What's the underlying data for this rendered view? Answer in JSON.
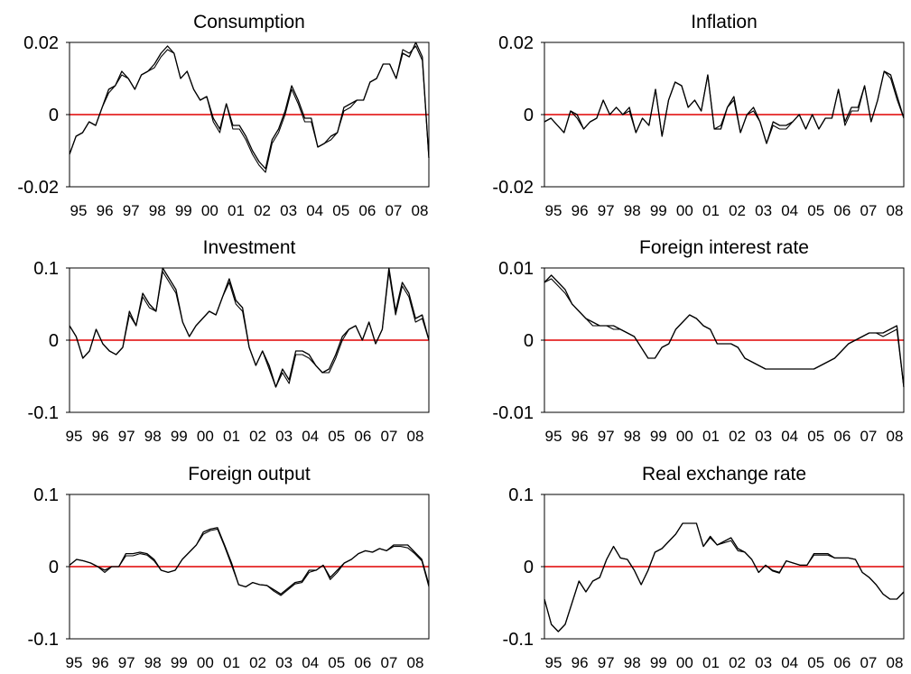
{
  "chart_data": [
    {
      "type": "line",
      "title": "Consumption",
      "ylim": [
        -0.02,
        0.02
      ],
      "yticks": [
        "0.02",
        "0",
        "-0.02"
      ],
      "xticks": [
        "95",
        "96",
        "97",
        "98",
        "99",
        "00",
        "01",
        "02",
        "03",
        "04",
        "05",
        "06",
        "07",
        "08"
      ],
      "reference_line": 0,
      "colors": {
        "series": "#000000",
        "zero_line": "#e00000"
      },
      "series": [
        {
          "values": [
            -0.011,
            -0.006,
            -0.005,
            -0.002,
            -0.003,
            0.002,
            0.007,
            0.008,
            0.012,
            0.01,
            0.007,
            0.011,
            0.012,
            0.014,
            0.017,
            0.019,
            0.017,
            0.01,
            0.012,
            0.007,
            0.004,
            0.005,
            -0.001,
            -0.004,
            0.003,
            -0.003,
            -0.003,
            -0.006,
            -0.01,
            -0.013,
            -0.015,
            -0.007,
            -0.004,
            0.001,
            0.008,
            0.004,
            -0.001,
            -0.001,
            -0.009,
            -0.008,
            -0.006,
            -0.005,
            0.002,
            0.003,
            0.004,
            0.004,
            0.009,
            0.01,
            0.014,
            0.014,
            0.01,
            0.017,
            0.016,
            0.02,
            0.016,
            -0.012
          ]
        },
        {
          "values": [
            -0.011,
            -0.006,
            -0.005,
            -0.002,
            -0.003,
            0.002,
            0.006,
            0.008,
            0.011,
            0.01,
            0.007,
            0.011,
            0.012,
            0.013,
            0.016,
            0.018,
            0.017,
            0.01,
            0.012,
            0.007,
            0.004,
            0.005,
            -0.002,
            -0.005,
            0.003,
            -0.004,
            -0.004,
            -0.007,
            -0.011,
            -0.014,
            -0.016,
            -0.008,
            -0.005,
            0.0,
            0.007,
            0.003,
            -0.002,
            -0.002,
            -0.009,
            -0.008,
            -0.007,
            -0.005,
            0.001,
            0.002,
            0.004,
            0.004,
            0.009,
            0.01,
            0.014,
            0.014,
            0.01,
            0.018,
            0.017,
            0.019,
            0.015,
            -0.012
          ]
        }
      ]
    },
    {
      "type": "line",
      "title": "Inflation",
      "ylim": [
        -0.02,
        0.02
      ],
      "yticks": [
        "0.02",
        "0",
        "-0.02"
      ],
      "xticks": [
        "95",
        "96",
        "97",
        "98",
        "99",
        "00",
        "01",
        "02",
        "03",
        "04",
        "05",
        "06",
        "07",
        "08"
      ],
      "reference_line": 0,
      "colors": {
        "series": "#000000",
        "zero_line": "#e00000"
      },
      "series": [
        {
          "values": [
            -0.002,
            -0.001,
            -0.003,
            -0.005,
            0.001,
            0.0,
            -0.004,
            -0.002,
            -0.001,
            0.004,
            0.0,
            0.002,
            0.0,
            0.002,
            -0.005,
            -0.001,
            -0.003,
            0.007,
            -0.006,
            0.004,
            0.009,
            0.008,
            0.002,
            0.004,
            0.001,
            0.011,
            -0.004,
            -0.004,
            0.002,
            0.005,
            -0.005,
            0.0,
            0.002,
            -0.002,
            -0.008,
            -0.002,
            -0.003,
            -0.003,
            -0.002,
            0.0,
            -0.004,
            0.0,
            -0.004,
            -0.001,
            -0.001,
            0.007,
            -0.002,
            0.002,
            0.002,
            0.008,
            -0.002,
            0.004,
            0.012,
            0.011,
            0.005,
            -0.001
          ]
        },
        {
          "values": [
            -0.002,
            -0.001,
            -0.003,
            -0.005,
            0.001,
            -0.001,
            -0.004,
            -0.002,
            -0.001,
            0.004,
            0.0,
            0.002,
            0.0,
            0.001,
            -0.005,
            -0.001,
            -0.003,
            0.007,
            -0.006,
            0.004,
            0.009,
            0.008,
            0.002,
            0.004,
            0.001,
            0.011,
            -0.004,
            -0.003,
            0.002,
            0.004,
            -0.005,
            0.0,
            0.001,
            -0.002,
            -0.008,
            -0.003,
            -0.004,
            -0.004,
            -0.002,
            0.0,
            -0.004,
            0.0,
            -0.004,
            -0.001,
            -0.001,
            0.007,
            -0.003,
            0.001,
            0.001,
            0.008,
            -0.002,
            0.004,
            0.012,
            0.01,
            0.004,
            -0.001
          ]
        }
      ]
    },
    {
      "type": "line",
      "title": "Investment",
      "ylim": [
        -0.1,
        0.1
      ],
      "yticks": [
        "0.1",
        "0",
        "-0.1"
      ],
      "xticks": [
        "95",
        "96",
        "97",
        "98",
        "99",
        "00",
        "01",
        "02",
        "03",
        "04",
        "05",
        "06",
        "07",
        "08"
      ],
      "reference_line": 0,
      "colors": {
        "series": "#000000",
        "zero_line": "#e00000"
      },
      "series": [
        {
          "values": [
            0.02,
            0.005,
            -0.025,
            -0.015,
            0.015,
            -0.005,
            -0.015,
            -0.02,
            -0.01,
            0.04,
            0.02,
            0.065,
            0.05,
            0.04,
            0.1,
            0.085,
            0.07,
            0.025,
            0.005,
            0.02,
            0.03,
            0.04,
            0.035,
            0.06,
            0.085,
            0.055,
            0.045,
            -0.01,
            -0.035,
            -0.015,
            -0.035,
            -0.065,
            -0.04,
            -0.055,
            -0.015,
            -0.015,
            -0.02,
            -0.035,
            -0.045,
            -0.04,
            -0.02,
            0.005,
            0.015,
            0.02,
            0.0,
            0.025,
            -0.005,
            0.015,
            0.1,
            0.04,
            0.08,
            0.065,
            0.03,
            0.035,
            0.0
          ]
        },
        {
          "values": [
            0.02,
            0.005,
            -0.025,
            -0.015,
            0.015,
            -0.005,
            -0.015,
            -0.02,
            -0.01,
            0.035,
            0.02,
            0.06,
            0.045,
            0.04,
            0.095,
            0.08,
            0.065,
            0.025,
            0.005,
            0.02,
            0.03,
            0.04,
            0.035,
            0.06,
            0.08,
            0.05,
            0.04,
            -0.01,
            -0.035,
            -0.015,
            -0.04,
            -0.065,
            -0.045,
            -0.06,
            -0.02,
            -0.02,
            -0.025,
            -0.035,
            -0.045,
            -0.045,
            -0.025,
            0.0,
            0.015,
            0.02,
            0.0,
            0.025,
            -0.005,
            0.015,
            0.095,
            0.035,
            0.075,
            0.06,
            0.025,
            0.03,
            0.0
          ]
        }
      ]
    },
    {
      "type": "line",
      "title": "Foreign interest rate",
      "ylim": [
        -0.01,
        0.01
      ],
      "yticks": [
        "0.01",
        "0",
        "-0.01"
      ],
      "xticks": [
        "95",
        "96",
        "97",
        "98",
        "99",
        "00",
        "01",
        "02",
        "03",
        "04",
        "05",
        "06",
        "07",
        "08"
      ],
      "reference_line": 0,
      "colors": {
        "series": "#000000",
        "zero_line": "#e00000"
      },
      "series": [
        {
          "values": [
            0.008,
            0.009,
            0.008,
            0.007,
            0.005,
            0.004,
            0.003,
            0.0025,
            0.002,
            0.002,
            0.002,
            0.0015,
            0.001,
            0.0005,
            -0.001,
            -0.0025,
            -0.0025,
            -0.001,
            -0.0005,
            0.0015,
            0.0025,
            0.0035,
            0.003,
            0.002,
            0.0015,
            -0.0005,
            -0.0005,
            -0.0005,
            -0.001,
            -0.0025,
            -0.003,
            -0.0035,
            -0.004,
            -0.004,
            -0.004,
            -0.004,
            -0.004,
            -0.004,
            -0.004,
            -0.004,
            -0.0035,
            -0.003,
            -0.0025,
            -0.0015,
            -0.0005,
            0.0,
            0.0005,
            0.001,
            0.001,
            0.001,
            0.0015,
            0.002,
            -0.0065
          ]
        },
        {
          "values": [
            0.008,
            0.0085,
            0.0075,
            0.0065,
            0.005,
            0.004,
            0.003,
            0.002,
            0.002,
            0.002,
            0.0015,
            0.0015,
            0.001,
            0.0005,
            -0.001,
            -0.0025,
            -0.0025,
            -0.001,
            -0.0005,
            0.0015,
            0.0025,
            0.0035,
            0.003,
            0.002,
            0.0015,
            -0.0005,
            -0.0005,
            -0.0005,
            -0.001,
            -0.0025,
            -0.003,
            -0.0035,
            -0.004,
            -0.004,
            -0.004,
            -0.004,
            -0.004,
            -0.004,
            -0.004,
            -0.004,
            -0.0035,
            -0.003,
            -0.0025,
            -0.0015,
            -0.0005,
            0.0,
            0.0005,
            0.001,
            0.001,
            0.0005,
            0.001,
            0.0015,
            -0.0065
          ]
        }
      ]
    },
    {
      "type": "line",
      "title": "Foreign output",
      "ylim": [
        -0.1,
        0.1
      ],
      "yticks": [
        "0.1",
        "0",
        "-0.1"
      ],
      "xticks": [
        "95",
        "96",
        "97",
        "98",
        "99",
        "00",
        "01",
        "02",
        "03",
        "04",
        "05",
        "06",
        "07",
        "08"
      ],
      "reference_line": 0,
      "colors": {
        "series": "#000000",
        "zero_line": "#e00000"
      },
      "series": [
        {
          "values": [
            0.002,
            0.01,
            0.008,
            0.005,
            0.0,
            -0.005,
            0.0,
            0.0,
            0.018,
            0.018,
            0.02,
            0.018,
            0.01,
            -0.005,
            -0.008,
            -0.005,
            0.01,
            0.02,
            0.03,
            0.048,
            0.052,
            0.054,
            0.03,
            0.005,
            -0.025,
            -0.028,
            -0.022,
            -0.025,
            -0.026,
            -0.032,
            -0.038,
            -0.03,
            -0.022,
            -0.02,
            -0.005,
            -0.005,
            0.002,
            -0.015,
            -0.005,
            0.005,
            0.01,
            0.018,
            0.022,
            0.02,
            0.025,
            0.022,
            0.03,
            0.03,
            0.03,
            0.02,
            0.01,
            -0.025
          ]
        },
        {
          "values": [
            0.002,
            0.01,
            0.008,
            0.005,
            0.0,
            -0.008,
            0.0,
            0.0,
            0.015,
            0.015,
            0.018,
            0.016,
            0.008,
            -0.005,
            -0.008,
            -0.005,
            0.01,
            0.02,
            0.03,
            0.045,
            0.05,
            0.052,
            0.028,
            0.002,
            -0.025,
            -0.028,
            -0.022,
            -0.025,
            -0.026,
            -0.034,
            -0.04,
            -0.032,
            -0.024,
            -0.022,
            -0.008,
            -0.005,
            0.002,
            -0.018,
            -0.008,
            0.005,
            0.01,
            0.018,
            0.022,
            0.02,
            0.025,
            0.022,
            0.028,
            0.028,
            0.026,
            0.018,
            0.008,
            -0.028
          ]
        }
      ]
    },
    {
      "type": "line",
      "title": "Real exchange rate",
      "ylim": [
        -0.1,
        0.1
      ],
      "yticks": [
        "0.1",
        "0",
        "-0.1"
      ],
      "xticks": [
        "95",
        "96",
        "97",
        "98",
        "99",
        "00",
        "01",
        "02",
        "03",
        "04",
        "05",
        "06",
        "07",
        "08"
      ],
      "reference_line": 0,
      "colors": {
        "series": "#000000",
        "zero_line": "#e00000"
      },
      "series": [
        {
          "values": [
            -0.045,
            -0.08,
            -0.09,
            -0.08,
            -0.05,
            -0.02,
            -0.035,
            -0.02,
            -0.015,
            0.01,
            0.028,
            0.012,
            0.01,
            -0.005,
            -0.025,
            -0.005,
            0.02,
            0.025,
            0.035,
            0.045,
            0.06,
            0.06,
            0.06,
            0.028,
            0.042,
            0.03,
            0.035,
            0.04,
            0.025,
            0.02,
            0.01,
            -0.008,
            0.002,
            -0.005,
            -0.008,
            0.008,
            0.005,
            0.002,
            0.002,
            0.018,
            0.018,
            0.018,
            0.012,
            0.012,
            0.012,
            0.01,
            -0.008,
            -0.015,
            -0.025,
            -0.038,
            -0.045,
            -0.045,
            -0.035
          ]
        },
        {
          "values": [
            -0.045,
            -0.08,
            -0.09,
            -0.08,
            -0.05,
            -0.02,
            -0.035,
            -0.02,
            -0.015,
            0.01,
            0.028,
            0.012,
            0.01,
            -0.005,
            -0.025,
            -0.005,
            0.02,
            0.025,
            0.035,
            0.045,
            0.06,
            0.06,
            0.06,
            0.028,
            0.04,
            0.03,
            0.033,
            0.036,
            0.022,
            0.02,
            0.01,
            -0.008,
            0.002,
            -0.006,
            -0.009,
            0.008,
            0.005,
            0.002,
            0.002,
            0.016,
            0.016,
            0.016,
            0.012,
            0.012,
            0.012,
            0.01,
            -0.008,
            -0.015,
            -0.025,
            -0.038,
            -0.045,
            -0.045,
            -0.035
          ]
        }
      ]
    }
  ]
}
